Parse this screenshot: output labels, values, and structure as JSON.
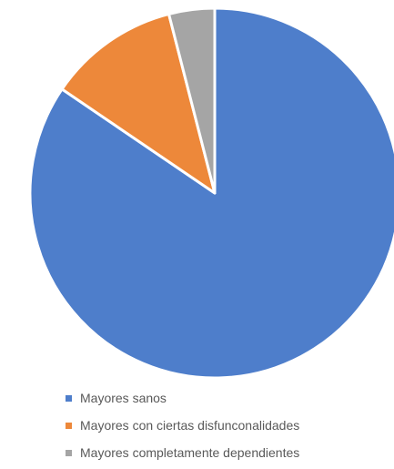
{
  "chart_data": {
    "type": "pie",
    "title": "",
    "categories": [
      "Mayores sanos",
      "Mayores con ciertas disfunconalidades",
      "Mayores completamente dependientes"
    ],
    "values": [
      84.5,
      11.5,
      4.0
    ],
    "colors": [
      "#4E7ECB",
      "#ED883A",
      "#A5A5A5"
    ],
    "start_angle_deg": 0,
    "direction": "clockwise",
    "legend_position": "bottom",
    "slice_border_color": "#ffffff"
  }
}
